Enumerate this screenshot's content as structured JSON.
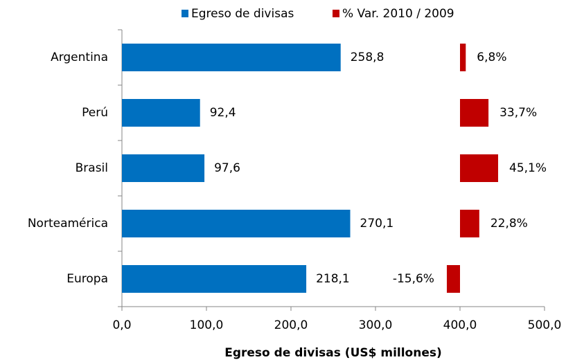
{
  "chart_data": {
    "type": "bar",
    "orientation": "horizontal",
    "categories": [
      "Argentina",
      "Perú",
      "Brasil",
      "Norteamérica",
      "Europa"
    ],
    "series": [
      {
        "name": "Egreso de divisas",
        "color": "#0070c0",
        "values": [
          258.8,
          92.4,
          97.6,
          270.1,
          218.1
        ],
        "value_labels": [
          "258,8",
          "92,4",
          "97,6",
          "270,1",
          "218,1"
        ]
      },
      {
        "name": "% Var. 2010 / 2009",
        "color": "#c00000",
        "values": [
          6.8,
          33.7,
          45.1,
          22.8,
          -15.6
        ],
        "value_labels": [
          "6,8%",
          "33,7%",
          "45,1%",
          "22,8%",
          "-15,6%"
        ]
      }
    ],
    "xlabel": "Egreso de divisas (US$ millones)",
    "xlim": [
      0,
      500
    ],
    "xticks": [
      {
        "value": 0,
        "label": "0,0"
      },
      {
        "value": 100,
        "label": "100,0"
      },
      {
        "value": 200,
        "label": "200,0"
      },
      {
        "value": 300,
        "label": "300,0"
      },
      {
        "value": 400,
        "label": "400,0"
      },
      {
        "value": 500,
        "label": "500,0"
      }
    ],
    "legend": "top"
  }
}
